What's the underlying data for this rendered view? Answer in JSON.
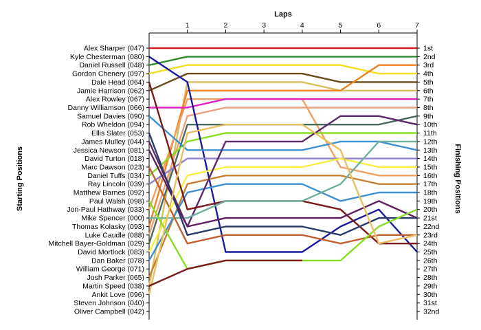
{
  "chart_data": {
    "type": "line",
    "title": "",
    "top_axis_title": "Laps",
    "left_axis_title": "Starting Positions",
    "right_axis_title": "Finishing Positions",
    "laps": [
      0,
      1,
      2,
      3,
      4,
      5,
      6,
      7
    ],
    "lap_tick_labels": [
      "1",
      "2",
      "3",
      "4",
      "5",
      "6",
      "7"
    ],
    "starting_labels": [
      "Alex Sharper (047)",
      "Kyle Chesterman (080)",
      "Daniel Russell (048)",
      "Gordon Chenery (097)",
      "Dale Head (064)",
      "Jamie Harrison (062)",
      "Alex Rowley (067)",
      "Danny Williamson (066)",
      "Samuel Davies (090)",
      "Rob Wheldon (094)",
      "Ellis Slater (053)",
      "James Mulley (044)",
      "Jessica Newson (081)",
      "David Turton (018)",
      "Marc Dawson (023)",
      "Daniel Tuffs (034)",
      "Ray Lincoln (039)",
      "Matthew Barnes (092)",
      "Paul Walsh (098)",
      "Jon-Paul Hathway (033)",
      "Mike Spencer (000)",
      "Thomas Kolasky (093)",
      "Luke Caudle (088)",
      "Mitchell Bayer-Goldman (029)",
      "David Mortlock (083)",
      "Dan Baker (078)",
      "William George (071)",
      "Josh Parker (065)",
      "Martin Speed (038)",
      "Ankit Love (096)",
      "Steven Johnson (040)",
      "Oliver Campbell (042)"
    ],
    "finishing_labels": [
      "1st",
      "2nd",
      "3rd",
      "4th",
      "5th",
      "6th",
      "7th",
      "8th",
      "9th",
      "10th",
      "11th",
      "12th",
      "13th",
      "14th",
      "15th",
      "16th",
      "17th",
      "18th",
      "19th",
      "20th",
      "21st",
      "22nd",
      "23rd",
      "24th",
      "25th",
      "26th",
      "27th",
      "28th",
      "29th",
      "30th",
      "31st",
      "32nd"
    ],
    "series": [
      {
        "color": "#d12020",
        "positions": [
          1,
          1,
          1,
          1,
          1,
          1,
          1,
          1
        ]
      },
      {
        "color": "#2e8b2e",
        "positions": [
          3,
          2,
          2,
          2,
          2,
          2,
          2,
          2
        ]
      },
      {
        "color": "#f0e020",
        "positions": [
          4,
          3,
          3,
          3,
          3,
          3,
          4,
          4
        ]
      },
      {
        "color": "#6b4a1a",
        "positions": [
          6,
          4,
          4,
          4,
          4,
          5,
          5,
          5
        ]
      },
      {
        "color": "#d8c060",
        "positions": [
          29,
          5,
          5,
          5,
          5,
          6,
          6,
          6
        ]
      },
      {
        "color": "#f08020",
        "positions": [
          22,
          6,
          6,
          6,
          6,
          6,
          3,
          3
        ]
      },
      {
        "color": "#f0a060",
        "positions": [
          20,
          7,
          7,
          7,
          7,
          15,
          16,
          16
        ]
      },
      {
        "color": "#e020c0",
        "positions": [
          8,
          8,
          7,
          7,
          7,
          7,
          7,
          7
        ]
      },
      {
        "color": "#e8a080",
        "positions": [
          23,
          9,
          8,
          8,
          8,
          8,
          8,
          8
        ]
      },
      {
        "color": "#4a6a5a",
        "positions": [
          24,
          10,
          10,
          10,
          10,
          10,
          10,
          9
        ]
      },
      {
        "color": "#88dd22",
        "positions": [
          16,
          12,
          11,
          11,
          11,
          11,
          11,
          11
        ]
      },
      {
        "color": "#1a1aa0",
        "positions": [
          2,
          5,
          25,
          25,
          25,
          22,
          20,
          25
        ]
      },
      {
        "color": "#4090d0",
        "positions": [
          9,
          13,
          13,
          13,
          13,
          12,
          12,
          13
        ]
      },
      {
        "color": "#9080d0",
        "positions": [
          17,
          14,
          14,
          14,
          14,
          14,
          14,
          14
        ]
      },
      {
        "color": "#f8f040",
        "positions": [
          25,
          16,
          15,
          15,
          15,
          14,
          15,
          15
        ]
      },
      {
        "color": "#c88030",
        "positions": [
          28,
          17,
          16,
          16,
          16,
          16,
          17,
          17
        ]
      },
      {
        "color": "#4090d0",
        "positions": [
          26,
          18,
          17,
          17,
          17,
          19,
          18,
          18
        ]
      },
      {
        "color": "#5a2a6a",
        "positions": [
          12,
          22,
          12,
          12,
          12,
          9,
          9,
          10
        ]
      },
      {
        "color": "#7a1a1a",
        "positions": [
          5,
          20,
          19,
          19,
          19,
          20,
          24,
          24
        ]
      },
      {
        "color": "#70b0a0",
        "positions": [
          21,
          21,
          19,
          19,
          19,
          17,
          12,
          12
        ]
      },
      {
        "color": "#602060",
        "positions": [
          13,
          22,
          21,
          21,
          21,
          21,
          19,
          21
        ]
      },
      {
        "color": "#2a3a6a",
        "positions": [
          11,
          23,
          22,
          22,
          22,
          23,
          21,
          21
        ]
      },
      {
        "color": "#c06030",
        "positions": [
          15,
          24,
          23,
          23,
          23,
          24,
          23,
          23
        ]
      },
      {
        "color": "#88dd22",
        "positions": [
          19,
          27,
          26,
          26,
          26,
          26,
          22,
          20
        ]
      },
      {
        "color": "#e8c060",
        "positions": [
          30,
          11,
          10,
          10,
          10,
          13,
          24,
          23
        ]
      },
      {
        "color": "#7a1a1a",
        "positions": [
          29,
          27,
          26,
          26,
          26
        ]
      }
    ]
  }
}
